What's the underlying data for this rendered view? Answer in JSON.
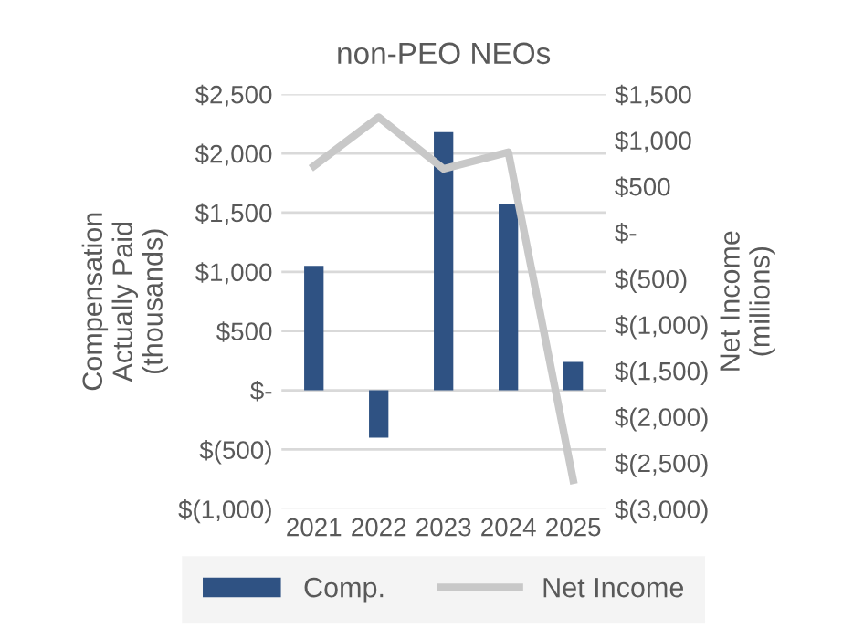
{
  "chart_data": {
    "type": "bar",
    "title": "non-PEO NEOs",
    "ylabel": "Compensation\nActually Paid\n(thousands)",
    "y2label": "Net Income\n(millions)",
    "categories": [
      "2021",
      "2022",
      "2023",
      "2024",
      "2025"
    ],
    "series": [
      {
        "name": "Comp.",
        "color": "#2f5283",
        "values": [
          1050,
          -400,
          2180,
          1570,
          240
        ]
      },
      {
        "name": "Net Income",
        "type": "line",
        "axis": "y2",
        "color": "#c8c8c8",
        "values": [
          720,
          1250,
          690,
          870,
          -2690
        ]
      }
    ],
    "ylim": [
      -1000,
      2500
    ],
    "yticks": [
      {
        "value": -1000,
        "label": "$(1,000)"
      },
      {
        "value": -500,
        "label": "$(500)"
      },
      {
        "value": 0,
        "label": "$-"
      },
      {
        "value": 500,
        "label": "$500"
      },
      {
        "value": 1000,
        "label": "$1,000"
      },
      {
        "value": 1500,
        "label": "$1,500"
      },
      {
        "value": 2000,
        "label": "$2,000"
      },
      {
        "value": 2500,
        "label": "$2,500"
      }
    ],
    "y2lim": [
      -3000,
      1500
    ],
    "y2ticks": [
      {
        "value": -3000,
        "label": "$(3,000)"
      },
      {
        "value": -2500,
        "label": "$(2,500)"
      },
      {
        "value": -2000,
        "label": "$(2,000)"
      },
      {
        "value": -1500,
        "label": "$(1,500)"
      },
      {
        "value": -1000,
        "label": "$(1,000)"
      },
      {
        "value": -500,
        "label": "$(500)"
      },
      {
        "value": 0,
        "label": "$-"
      },
      {
        "value": 500,
        "label": "$500"
      },
      {
        "value": 1000,
        "label": "$1,000"
      },
      {
        "value": 1500,
        "label": "$1,500"
      }
    ],
    "grid": "y",
    "legend": "bottom"
  }
}
